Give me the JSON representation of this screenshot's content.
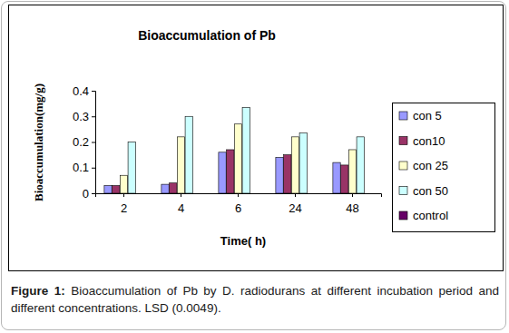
{
  "chart_data": {
    "type": "bar",
    "title": "Bioaccumulation of Pb",
    "x_label": "Time( h)",
    "y_label": "Bioaccumulation(mg/g)",
    "categories": [
      "2",
      "4",
      "6",
      "24",
      "48"
    ],
    "series": [
      {
        "name": "con 5",
        "color": "#9999ff",
        "values": [
          0.03,
          0.035,
          0.16,
          0.14,
          0.12
        ]
      },
      {
        "name": "con10",
        "color": "#993366",
        "values": [
          0.03,
          0.04,
          0.17,
          0.15,
          0.11
        ]
      },
      {
        "name": "con 25",
        "color": "#ffffcc",
        "values": [
          0.07,
          0.22,
          0.27,
          0.22,
          0.17
        ]
      },
      {
        "name": "con 50",
        "color": "#ccffff",
        "values": [
          0.2,
          0.3,
          0.335,
          0.235,
          0.22
        ]
      },
      {
        "name": "control",
        "color": "#660066",
        "values": [
          0,
          0,
          0,
          0,
          0
        ]
      }
    ],
    "ylim": [
      0,
      0.4
    ],
    "yticks": [
      0,
      0.1,
      0.2,
      0.3,
      0.4
    ],
    "grid": false,
    "legend": "right"
  },
  "caption": {
    "label": "Figure 1:",
    "text": "Bioaccumulation of Pb by D. radiodurans at different incubation period and different concentrations. LSD (0.0049)."
  }
}
